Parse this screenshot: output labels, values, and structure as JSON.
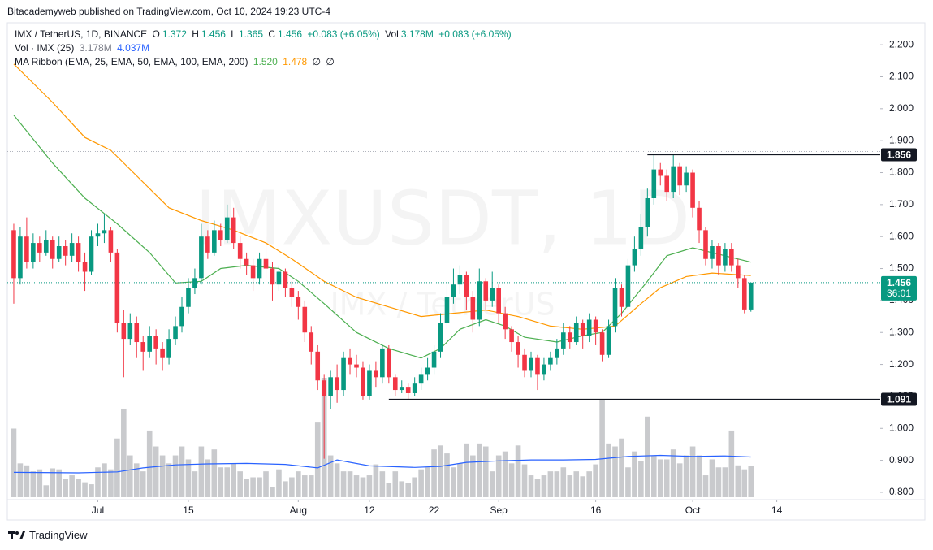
{
  "header": {
    "published": "Bitacademyweb published on TradingView.com, Oct 10, 2024 19:23 UTC-4",
    "brand": "TradingView"
  },
  "chart_data": {
    "type": "candlestick",
    "title": "IMX / TetherUS, 1D, BINANCE",
    "watermark": "IMXUSDT, 1D",
    "watermark_sub": "IMX / TetherUS",
    "legend": {
      "o": "O",
      "h": "H",
      "l": "L",
      "c": "C",
      "change": "+0.083 (+6.05%)",
      "vol": "Vol",
      "vol_value": "3.178M",
      "vol_change": "+0.083 (+6.05%)",
      "vol_last": "3.178M",
      "vol_ma": "4.037M",
      "ema_values": [
        "1.520",
        "1.478",
        "∅",
        "∅"
      ]
    },
    "up_color": "#089981",
    "down_color": "#f23645",
    "x": [
      "2024-06-18",
      "2024-06-19",
      "2024-06-20",
      "2024-06-21",
      "2024-06-22",
      "2024-06-23",
      "2024-06-24",
      "2024-06-25",
      "2024-06-26",
      "2024-06-27",
      "2024-06-28",
      "2024-06-29",
      "2024-06-30",
      "2024-07-01",
      "2024-07-02",
      "2024-07-03",
      "2024-07-04",
      "2024-07-05",
      "2024-07-06",
      "2024-07-07",
      "2024-07-08",
      "2024-07-09",
      "2024-07-10",
      "2024-07-11",
      "2024-07-12",
      "2024-07-13",
      "2024-07-14",
      "2024-07-15",
      "2024-07-16",
      "2024-07-17",
      "2024-07-18",
      "2024-07-19",
      "2024-07-20",
      "2024-07-21",
      "2024-07-22",
      "2024-07-23",
      "2024-07-24",
      "2024-07-25",
      "2024-07-26",
      "2024-07-27",
      "2024-07-28",
      "2024-07-29",
      "2024-07-30",
      "2024-07-31",
      "2024-08-01",
      "2024-08-02",
      "2024-08-03",
      "2024-08-04",
      "2024-08-05",
      "2024-08-06",
      "2024-08-07",
      "2024-08-08",
      "2024-08-09",
      "2024-08-10",
      "2024-08-11",
      "2024-08-12",
      "2024-08-13",
      "2024-08-14",
      "2024-08-15",
      "2024-08-16",
      "2024-08-17",
      "2024-08-18",
      "2024-08-19",
      "2024-08-20",
      "2024-08-21",
      "2024-08-22",
      "2024-08-23",
      "2024-08-24",
      "2024-08-25",
      "2024-08-26",
      "2024-08-27",
      "2024-08-28",
      "2024-08-29",
      "2024-08-30",
      "2024-08-31",
      "2024-09-01",
      "2024-09-02",
      "2024-09-03",
      "2024-09-04",
      "2024-09-05",
      "2024-09-06",
      "2024-09-07",
      "2024-09-08",
      "2024-09-09",
      "2024-09-10",
      "2024-09-11",
      "2024-09-12",
      "2024-09-13",
      "2024-09-14",
      "2024-09-15",
      "2024-09-16",
      "2024-09-17",
      "2024-09-18",
      "2024-09-19",
      "2024-09-20",
      "2024-09-21",
      "2024-09-22",
      "2024-09-23",
      "2024-09-24",
      "2024-09-25",
      "2024-09-26",
      "2024-09-27",
      "2024-09-28",
      "2024-09-29",
      "2024-09-30",
      "2024-10-01",
      "2024-10-02",
      "2024-10-03",
      "2024-10-04",
      "2024-10-05",
      "2024-10-06",
      "2024-10-07",
      "2024-10-08",
      "2024-10-09",
      "2024-10-10"
    ],
    "open": [
      1.62,
      1.47,
      1.6,
      1.52,
      1.58,
      1.55,
      1.59,
      1.53,
      1.57,
      1.54,
      1.58,
      1.52,
      1.49,
      1.6,
      1.61,
      1.62,
      1.55,
      1.33,
      1.28,
      1.33,
      1.27,
      1.24,
      1.29,
      1.25,
      1.22,
      1.28,
      1.32,
      1.38,
      1.44,
      1.47,
      1.6,
      1.55,
      1.62,
      1.59,
      1.66,
      1.58,
      1.53,
      1.51,
      1.47,
      1.53,
      1.5,
      1.45,
      1.49,
      1.44,
      1.41,
      1.38,
      1.3,
      1.24,
      1.15,
      1.1,
      1.16,
      1.12,
      1.22,
      1.2,
      1.19,
      1.1,
      1.18,
      1.16,
      1.25,
      1.16,
      1.12,
      1.13,
      1.11,
      1.14,
      1.17,
      1.19,
      1.24,
      1.33,
      1.41,
      1.45,
      1.48,
      1.41,
      1.34,
      1.46,
      1.4,
      1.44,
      1.36,
      1.31,
      1.27,
      1.23,
      1.18,
      1.22,
      1.17,
      1.2,
      1.22,
      1.25,
      1.3,
      1.27,
      1.33,
      1.29,
      1.34,
      1.3,
      1.23,
      1.32,
      1.44,
      1.38,
      1.51,
      1.56,
      1.63,
      1.72,
      1.81,
      1.79,
      1.74,
      1.82,
      1.76,
      1.8,
      1.69,
      1.62,
      1.53,
      1.57,
      1.51,
      1.56,
      1.51,
      1.47,
      1.372
    ],
    "high": [
      1.64,
      1.63,
      1.66,
      1.61,
      1.6,
      1.62,
      1.6,
      1.6,
      1.59,
      1.61,
      1.6,
      1.55,
      1.62,
      1.64,
      1.67,
      1.63,
      1.56,
      1.37,
      1.36,
      1.35,
      1.29,
      1.32,
      1.31,
      1.27,
      1.31,
      1.35,
      1.41,
      1.47,
      1.5,
      1.64,
      1.62,
      1.65,
      1.64,
      1.7,
      1.69,
      1.6,
      1.55,
      1.53,
      1.55,
      1.6,
      1.52,
      1.51,
      1.5,
      1.46,
      1.43,
      1.4,
      1.32,
      1.26,
      1.17,
      1.18,
      1.2,
      1.24,
      1.25,
      1.23,
      1.21,
      1.2,
      1.21,
      1.26,
      1.26,
      1.17,
      1.15,
      1.14,
      1.16,
      1.19,
      1.22,
      1.26,
      1.36,
      1.45,
      1.5,
      1.51,
      1.49,
      1.43,
      1.5,
      1.47,
      1.49,
      1.45,
      1.38,
      1.32,
      1.29,
      1.25,
      1.24,
      1.23,
      1.22,
      1.24,
      1.28,
      1.33,
      1.32,
      1.35,
      1.34,
      1.36,
      1.35,
      1.31,
      1.34,
      1.47,
      1.45,
      1.53,
      1.6,
      1.67,
      1.75,
      1.856,
      1.83,
      1.81,
      1.856,
      1.83,
      1.82,
      1.81,
      1.71,
      1.63,
      1.59,
      1.58,
      1.58,
      1.58,
      1.53,
      1.48,
      1.456
    ],
    "low": [
      1.39,
      1.45,
      1.5,
      1.5,
      1.52,
      1.54,
      1.5,
      1.52,
      1.51,
      1.52,
      1.49,
      1.43,
      1.48,
      1.57,
      1.58,
      1.52,
      1.3,
      1.16,
      1.26,
      1.22,
      1.18,
      1.22,
      1.2,
      1.18,
      1.2,
      1.26,
      1.3,
      1.36,
      1.42,
      1.45,
      1.53,
      1.54,
      1.57,
      1.58,
      1.56,
      1.5,
      1.48,
      1.43,
      1.45,
      1.47,
      1.4,
      1.43,
      1.41,
      1.38,
      1.34,
      1.27,
      1.2,
      1.12,
      0.905,
      1.06,
      1.08,
      1.1,
      1.17,
      1.16,
      1.09,
      1.09,
      1.13,
      1.14,
      1.14,
      1.1,
      1.11,
      1.091,
      1.1,
      1.12,
      1.15,
      1.17,
      1.22,
      1.31,
      1.39,
      1.42,
      1.37,
      1.3,
      1.32,
      1.37,
      1.38,
      1.33,
      1.28,
      1.24,
      1.19,
      1.16,
      1.16,
      1.12,
      1.15,
      1.18,
      1.2,
      1.23,
      1.25,
      1.26,
      1.25,
      1.27,
      1.26,
      1.21,
      1.22,
      1.3,
      1.35,
      1.37,
      1.49,
      1.54,
      1.6,
      1.7,
      1.76,
      1.71,
      1.72,
      1.73,
      1.74,
      1.66,
      1.58,
      1.51,
      1.5,
      1.48,
      1.49,
      1.49,
      1.44,
      1.36,
      1.365
    ],
    "close": [
      1.47,
      1.6,
      1.52,
      1.58,
      1.55,
      1.59,
      1.53,
      1.57,
      1.54,
      1.58,
      1.52,
      1.49,
      1.6,
      1.61,
      1.62,
      1.55,
      1.33,
      1.28,
      1.33,
      1.27,
      1.24,
      1.29,
      1.25,
      1.22,
      1.28,
      1.32,
      1.38,
      1.44,
      1.47,
      1.6,
      1.55,
      1.62,
      1.59,
      1.66,
      1.58,
      1.53,
      1.51,
      1.47,
      1.53,
      1.5,
      1.45,
      1.49,
      1.44,
      1.41,
      1.38,
      1.3,
      1.24,
      1.15,
      1.1,
      1.16,
      1.12,
      1.22,
      1.2,
      1.19,
      1.1,
      1.18,
      1.16,
      1.25,
      1.16,
      1.12,
      1.13,
      1.11,
      1.14,
      1.17,
      1.19,
      1.24,
      1.33,
      1.41,
      1.45,
      1.48,
      1.41,
      1.34,
      1.46,
      1.4,
      1.44,
      1.36,
      1.31,
      1.27,
      1.23,
      1.18,
      1.22,
      1.17,
      1.2,
      1.22,
      1.25,
      1.3,
      1.27,
      1.33,
      1.29,
      1.34,
      1.3,
      1.23,
      1.32,
      1.44,
      1.38,
      1.51,
      1.56,
      1.63,
      1.72,
      1.81,
      1.79,
      1.74,
      1.82,
      1.76,
      1.8,
      1.69,
      1.62,
      1.53,
      1.57,
      1.51,
      1.56,
      1.51,
      1.47,
      1.372,
      1.456
    ],
    "volume": {
      "name": "Vol · IMX (25)",
      "color": "#c9cacd",
      "values": [
        6.9,
        3.4,
        3.2,
        2.6,
        2.8,
        1.2,
        2.9,
        2.8,
        1.8,
        2.2,
        1.8,
        1.5,
        1.3,
        3.0,
        3.4,
        2.8,
        5.9,
        8.9,
        4.2,
        3.4,
        2.6,
        6.7,
        5.1,
        4.2,
        3.4,
        4.2,
        5.1,
        3.8,
        2.6,
        5.1,
        3.8,
        4.8,
        3.0,
        3.0,
        3.4,
        2.6,
        1.8,
        2.0,
        2.0,
        2.6,
        1.0,
        2.8,
        1.6,
        2.0,
        2.6,
        2.2,
        2.2,
        7.5,
        12.0,
        4.2,
        3.4,
        2.6,
        2.6,
        2.2,
        2.0,
        2.2,
        3.3,
        2.6,
        1.4,
        2.6,
        1.6,
        1.4,
        2.0,
        2.8,
        3.0,
        4.8,
        5.2,
        4.4,
        3.0,
        3.4,
        5.4,
        4.2,
        5.4,
        5.1,
        2.6,
        4.2,
        4.6,
        3.4,
        5.2,
        3.3,
        2.2,
        1.8,
        2.2,
        2.6,
        2.6,
        3.0,
        2.2,
        2.6,
        2.1,
        2.6,
        3.3,
        9.8,
        5.4,
        5.1,
        5.9,
        3.0,
        4.6,
        3.6,
        8.1,
        4.2,
        3.8,
        3.8,
        4.8,
        3.4,
        4.2,
        5.1,
        4.2,
        2.2,
        3.8,
        3.0,
        3.0,
        6.7,
        3.2,
        2.8,
        3.178
      ],
      "ma": {
        "color": "#2962ff",
        "x": [
          "2024-06-18",
          "2024-06-28",
          "2024-07-04",
          "2024-07-08",
          "2024-07-13",
          "2024-07-18",
          "2024-07-24",
          "2024-07-30",
          "2024-08-04",
          "2024-08-07",
          "2024-08-12",
          "2024-08-19",
          "2024-08-23",
          "2024-08-27",
          "2024-09-01",
          "2024-09-06",
          "2024-09-11",
          "2024-09-16",
          "2024-09-21",
          "2024-09-26",
          "2024-10-01",
          "2024-10-06",
          "2024-10-10"
        ],
        "values": [
          2.5,
          2.45,
          2.55,
          2.95,
          3.25,
          3.35,
          3.4,
          3.3,
          2.95,
          3.75,
          3.15,
          3.0,
          3.1,
          3.5,
          3.65,
          3.75,
          3.75,
          3.8,
          4.1,
          4.2,
          4.1,
          4.15,
          4.037
        ]
      }
    },
    "ma_ribbon": {
      "name": "MA Ribbon (EMA, 25, EMA, 50, EMA, 100, EMA, 200)",
      "series": [
        {
          "color": "#4caf50",
          "x": [
            "2024-06-18",
            "2024-06-24",
            "2024-06-29",
            "2024-07-04",
            "2024-07-09",
            "2024-07-13",
            "2024-07-17",
            "2024-07-20",
            "2024-07-24",
            "2024-07-29",
            "2024-08-01",
            "2024-08-05",
            "2024-08-10",
            "2024-08-15",
            "2024-08-20",
            "2024-08-23",
            "2024-08-26",
            "2024-08-30",
            "2024-09-02",
            "2024-09-05",
            "2024-09-10",
            "2024-09-14",
            "2024-09-17",
            "2024-09-20",
            "2024-09-24",
            "2024-09-27",
            "2024-10-01",
            "2024-10-04",
            "2024-10-10"
          ],
          "values": [
            1.98,
            1.83,
            1.72,
            1.64,
            1.55,
            1.455,
            1.46,
            1.5,
            1.51,
            1.5,
            1.46,
            1.39,
            1.3,
            1.25,
            1.22,
            1.25,
            1.31,
            1.34,
            1.32,
            1.285,
            1.27,
            1.29,
            1.3,
            1.36,
            1.46,
            1.54,
            1.565,
            1.55,
            1.52
          ]
        },
        {
          "color": "#ff9800",
          "x": [
            "2024-06-18",
            "2024-06-24",
            "2024-06-29",
            "2024-07-03",
            "2024-07-07",
            "2024-07-12",
            "2024-07-17",
            "2024-07-22",
            "2024-07-27",
            "2024-07-31",
            "2024-08-05",
            "2024-08-10",
            "2024-08-15",
            "2024-08-20",
            "2024-08-25",
            "2024-08-30",
            "2024-09-04",
            "2024-09-09",
            "2024-09-14",
            "2024-09-19",
            "2024-09-23",
            "2024-09-26",
            "2024-09-30",
            "2024-10-04",
            "2024-10-10"
          ],
          "values": [
            2.14,
            2.02,
            1.91,
            1.87,
            1.79,
            1.69,
            1.65,
            1.62,
            1.58,
            1.53,
            1.46,
            1.41,
            1.38,
            1.35,
            1.36,
            1.37,
            1.35,
            1.32,
            1.31,
            1.32,
            1.39,
            1.44,
            1.475,
            1.486,
            1.478
          ]
        }
      ]
    },
    "levels": [
      {
        "value": 1.856,
        "start": "2024-09-24"
      },
      {
        "value": 1.091,
        "start": "2024-08-15"
      }
    ],
    "last_price": {
      "value": 1.456,
      "countdown": "36:01"
    },
    "ylim": [
      0.777,
      2.269
    ],
    "yticks": [
      {
        "value": 0.8,
        "label": "0.800"
      },
      {
        "value": 0.9,
        "label": "0.900"
      },
      {
        "value": 1.0,
        "label": "1.000"
      },
      {
        "value": 1.1,
        "label": "1.100"
      },
      {
        "value": 1.2,
        "label": "1.200"
      },
      {
        "value": 1.3,
        "label": "1.300"
      },
      {
        "value": 1.4,
        "label": "1.400"
      },
      {
        "value": 1.5,
        "label": "1.500"
      },
      {
        "value": 1.6,
        "label": "1.600"
      },
      {
        "value": 1.7,
        "label": "1.700"
      },
      {
        "value": 1.8,
        "label": "1.800"
      },
      {
        "value": 1.9,
        "label": "1.900"
      },
      {
        "value": 2.0,
        "label": "2.000"
      },
      {
        "value": 2.1,
        "label": "2.100"
      },
      {
        "value": 2.2,
        "label": "2.200"
      }
    ],
    "xlim": [
      "2024-06-17",
      "2024-10-30"
    ],
    "xticks": [
      {
        "value": "2024-07-01",
        "label": "Jul"
      },
      {
        "value": "2024-07-15",
        "label": "15"
      },
      {
        "value": "2024-08-01",
        "label": "Aug"
      },
      {
        "value": "2024-08-12",
        "label": "12"
      },
      {
        "value": "2024-08-22",
        "label": "22"
      },
      {
        "value": "2024-09-01",
        "label": "Sep"
      },
      {
        "value": "2024-09-16",
        "label": "16"
      },
      {
        "value": "2024-10-01",
        "label": "Oct"
      },
      {
        "value": "2024-10-14",
        "label": "14"
      }
    ]
  }
}
